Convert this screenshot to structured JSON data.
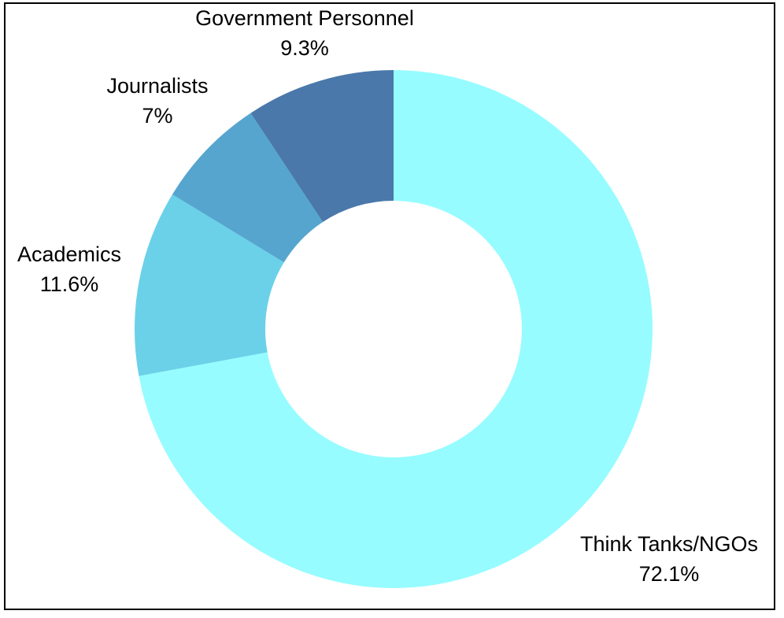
{
  "chart_data": {
    "type": "pie",
    "variant": "donut",
    "start_angle_deg": 0,
    "direction": "clockwise",
    "slices": [
      {
        "label": "Think Tanks/NGOs",
        "value": 72.1,
        "value_label": "72.1%",
        "color": "#96FCFF"
      },
      {
        "label": "Academics",
        "value": 11.6,
        "value_label": "11.6%",
        "color": "#6AD1E8"
      },
      {
        "label": "Journalists",
        "value": 7,
        "value_label": "7%",
        "color": "#55A5CF"
      },
      {
        "label": "Government Personnel",
        "value": 9.3,
        "value_label": "9.3%",
        "color": "#4A78AA"
      }
    ],
    "legend": "none"
  }
}
